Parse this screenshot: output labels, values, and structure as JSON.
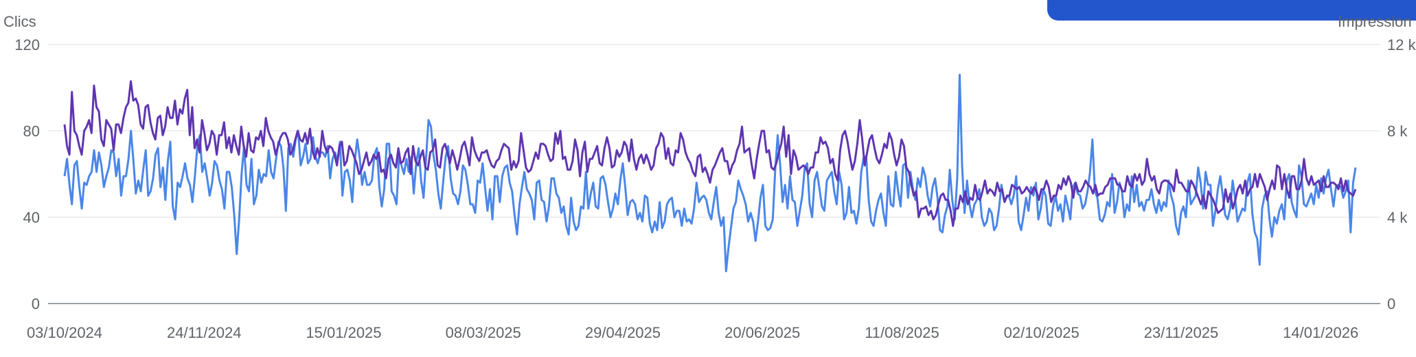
{
  "chart_data": {
    "type": "line",
    "left_axis_title": "Clics",
    "right_axis_title": "Impression",
    "left_ylim": [
      0,
      120
    ],
    "left_ticks": [
      0,
      40,
      80,
      120
    ],
    "left_tick_labels": [
      "0",
      "40",
      "80",
      "120"
    ],
    "right_ylim": [
      0,
      12000
    ],
    "right_tick_labels": [
      "0",
      "4 k",
      "8 k",
      "12 k"
    ],
    "x_tick_labels": [
      "03/10/2024",
      "24/11/2024",
      "15/01/2025",
      "08/03/2025",
      "29/04/2025",
      "20/06/2025",
      "11/08/2025",
      "02/10/2025",
      "23/11/2025",
      "14/01/2026"
    ],
    "x_range": [
      "2024-10-03",
      "2026-01-27"
    ],
    "grid": true,
    "series": [
      {
        "axis": "left",
        "color": "#5e35b1",
        "values": [
          83,
          73,
          69,
          98,
          80,
          78,
          73,
          69,
          80,
          82,
          85,
          79,
          101,
          91,
          89,
          76,
          73,
          85,
          83,
          81,
          71,
          83,
          83,
          79,
          86,
          91,
          93,
          103,
          94,
          95,
          92,
          83,
          81,
          91,
          92,
          84,
          79,
          76,
          86,
          87,
          78,
          82,
          91,
          86,
          86,
          94,
          83,
          90,
          88,
          95,
          99,
          78,
          91,
          72,
          76,
          70,
          85,
          79,
          71,
          74,
          80,
          78,
          69,
          78,
          78,
          84,
          72,
          77,
          70,
          78,
          73,
          69,
          82,
          73,
          68,
          79,
          71,
          70,
          77,
          76,
          80,
          73,
          86,
          80,
          77,
          75,
          69,
          73,
          77,
          79,
          79,
          76,
          69,
          71,
          76,
          80,
          76,
          75,
          79,
          74,
          81,
          71,
          67,
          72,
          68,
          80,
          73,
          70,
          73,
          72,
          69,
          64,
          73,
          75,
          64,
          66,
          73,
          71,
          68,
          65,
          60,
          62,
          66,
          70,
          64,
          66,
          69,
          67,
          70,
          61,
          62,
          58,
          67,
          69,
          65,
          63,
          72,
          65,
          66,
          70,
          72,
          60,
          73,
          66,
          64,
          68,
          71,
          63,
          62,
          70,
          71,
          76,
          64,
          63,
          72,
          74,
          70,
          65,
          71,
          67,
          62,
          67,
          73,
          75,
          70,
          64,
          77,
          71,
          68,
          66,
          70,
          70,
          71,
          67,
          64,
          63,
          66,
          67,
          71,
          74,
          73,
          72,
          62,
          66,
          63,
          66,
          79,
          71,
          63,
          61,
          62,
          66,
          70,
          67,
          74,
          74,
          73,
          69,
          66,
          67,
          79,
          74,
          80,
          67,
          68,
          62,
          62,
          66,
          76,
          71,
          59,
          70,
          75,
          61,
          67,
          67,
          70,
          73,
          65,
          64,
          72,
          77,
          72,
          63,
          64,
          71,
          68,
          70,
          75,
          73,
          66,
          76,
          67,
          62,
          67,
          69,
          65,
          69,
          66,
          62,
          64,
          72,
          74,
          79,
          77,
          67,
          72,
          65,
          64,
          71,
          70,
          79,
          76,
          70,
          67,
          65,
          61,
          59,
          68,
          69,
          61,
          63,
          60,
          56,
          62,
          64,
          67,
          70,
          72,
          66,
          66,
          60,
          64,
          66,
          71,
          74,
          82,
          70,
          71,
          72,
          64,
          58,
          67,
          74,
          80,
          80,
          70,
          71,
          63,
          62,
          65,
          70,
          74,
          82,
          68,
          78,
          60,
          71,
          68,
          62,
          63,
          64,
          63,
          60,
          63,
          63,
          70,
          70,
          77,
          74,
          75,
          72,
          65,
          67,
          60,
          57,
          71,
          78,
          80,
          75,
          68,
          62,
          66,
          74,
          85,
          76,
          64,
          70,
          76,
          78,
          72,
          67,
          65,
          69,
          74,
          72,
          79,
          76,
          69,
          64,
          68,
          76,
          73,
          63,
          61,
          55,
          50,
          52,
          40,
          44,
          44,
          45,
          41,
          43,
          39,
          41,
          46,
          50,
          51,
          48,
          48,
          43,
          36,
          44,
          44,
          50,
          47,
          52,
          46,
          49,
          48,
          55,
          49,
          48,
          52,
          57,
          51,
          53,
          52,
          50,
          56,
          52,
          53,
          47,
          50,
          50,
          55,
          54,
          53,
          54,
          51,
          52,
          54,
          52,
          51,
          54,
          52,
          48,
          53,
          53,
          57,
          54,
          47,
          50,
          50,
          55,
          53,
          58,
          55,
          59,
          56,
          49,
          56,
          52,
          52,
          54,
          57,
          55,
          54,
          51,
          55,
          50,
          51,
          51,
          54,
          55,
          58,
          58,
          58,
          55,
          55,
          52,
          52,
          59,
          55,
          54,
          60,
          57,
          60,
          55,
          57,
          67,
          60,
          57,
          59,
          53,
          51,
          56,
          57,
          57,
          56,
          55,
          52,
          62,
          56,
          56,
          54,
          52,
          52,
          57,
          55,
          52,
          49,
          46,
          50,
          44,
          52,
          50,
          48,
          45,
          42,
          43,
          44,
          53,
          47,
          51,
          44,
          48,
          53,
          55,
          51,
          57,
          50,
          53,
          54,
          60,
          54,
          60,
          57,
          54,
          48,
          53,
          57,
          53,
          64,
          63,
          53,
          60,
          53,
          49,
          59,
          59,
          53,
          53,
          57,
          67,
          58,
          55,
          59,
          55,
          56,
          57,
          52,
          59,
          54,
          54,
          56,
          56,
          55,
          53,
          58,
          52,
          57,
          52,
          51,
          50,
          53
        ]
      },
      {
        "axis": "right",
        "color": "#4a86e8",
        "values": [
          5900,
          6700,
          5500,
          4600,
          6400,
          6600,
          5400,
          4400,
          5600,
          5500,
          5900,
          6100,
          7100,
          6100,
          7000,
          6400,
          5400,
          5900,
          6300,
          7100,
          7000,
          5900,
          6700,
          5000,
          5900,
          5900,
          6700,
          8000,
          6600,
          5100,
          5700,
          5200,
          6200,
          7100,
          5000,
          5200,
          5800,
          6900,
          7200,
          5400,
          6300,
          4800,
          6600,
          7500,
          4500,
          3900,
          5600,
          5400,
          5900,
          6500,
          5800,
          5500,
          4700,
          5900,
          7300,
          7800,
          6100,
          6500,
          5800,
          5000,
          5600,
          6600,
          6400,
          5700,
          5300,
          4400,
          6100,
          6100,
          5400,
          4100,
          2300,
          3900,
          6000,
          7300,
          5500,
          5200,
          6700,
          4600,
          5000,
          6200,
          5600,
          6000,
          5900,
          7100,
          6100,
          5800,
          6700,
          7500,
          7300,
          6300,
          4300,
          7200,
          7400,
          6800,
          7600,
          8000,
          6400,
          6800,
          7400,
          6500,
          6700,
          7700,
          6800,
          6500,
          7000,
          7000,
          6800,
          7300,
          5800,
          6700,
          7000,
          6600,
          7500,
          5000,
          6100,
          6200,
          5700,
          4700,
          6600,
          7600,
          6800,
          5500,
          6100,
          5500,
          5500,
          5700,
          6900,
          7200,
          5400,
          4500,
          5300,
          7400,
          7400,
          5200,
          5000,
          4600,
          6800,
          6400,
          6000,
          6700,
          6100,
          6800,
          5100,
          6500,
          7200,
          5700,
          4900,
          6700,
          8500,
          8200,
          6900,
          6200,
          5100,
          4400,
          5700,
          6800,
          7300,
          5800,
          5100,
          5000,
          4600,
          5200,
          6400,
          6200,
          5500,
          4600,
          4600,
          4200,
          5700,
          5600,
          6500,
          5400,
          4300,
          5300,
          3900,
          5900,
          5900,
          4700,
          5900,
          6300,
          6400,
          5600,
          5200,
          4100,
          3200,
          4600,
          5400,
          6100,
          5300,
          5100,
          4800,
          3900,
          5600,
          5700,
          4800,
          4700,
          3800,
          4500,
          5800,
          5800,
          5100,
          4900,
          4200,
          4500,
          3600,
          3200,
          4900,
          3800,
          3400,
          3600,
          4500,
          4400,
          6100,
          4400,
          5100,
          5600,
          4500,
          4400,
          5800,
          5900,
          5500,
          4700,
          4000,
          4400,
          5100,
          4600,
          5700,
          6500,
          5400,
          4100,
          4700,
          4800,
          4600,
          3900,
          4200,
          3800,
          5000,
          4900,
          3700,
          3300,
          3800,
          3400,
          4700,
          3500,
          3800,
          4600,
          4800,
          4900,
          4000,
          4300,
          4300,
          3600,
          4400,
          3800,
          3900,
          3700,
          4400,
          5600,
          4700,
          4900,
          5000,
          4800,
          4200,
          3900,
          4700,
          5400,
          4200,
          3600,
          4000,
          1500,
          2600,
          3500,
          4400,
          4700,
          5700,
          5300,
          5000,
          4600,
          3800,
          4200,
          3800,
          2900,
          3800,
          4900,
          5500,
          3600,
          3400,
          3500,
          3900,
          6200,
          7800,
          6400,
          4700,
          5500,
          4400,
          5900,
          4800,
          4700,
          3600,
          4300,
          5000,
          6300,
          6500,
          4600,
          4000,
          5700,
          6100,
          5300,
          4500,
          4300,
          5700,
          5900,
          6100,
          5200,
          4600,
          6100,
          5500,
          3900,
          4200,
          5400,
          4200,
          4300,
          3700,
          4400,
          6100,
          6800,
          6800,
          4800,
          3800,
          3600,
          4300,
          4800,
          5100,
          4200,
          3600,
          5900,
          4600,
          4500,
          6100,
          5200,
          4500,
          6400,
          6500,
          4900,
          6100,
          5300,
          4800,
          5800,
          5400,
          6300,
          5900,
          5000,
          4500,
          5400,
          5800,
          4900,
          3400,
          3300,
          4100,
          4500,
          6200,
          4800,
          3900,
          5800,
          10600,
          6400,
          4200,
          5700,
          4600,
          4000,
          4600,
          4800,
          5300,
          4000,
          3600,
          3800,
          4400,
          4200,
          3400,
          3600,
          4400,
          5500,
          4800,
          4900,
          5000,
          4600,
          5000,
          5900,
          3800,
          3400,
          4100,
          4900,
          4300,
          5400,
          5000,
          5600,
          3900,
          4400,
          5300,
          5000,
          3700,
          3600,
          4500,
          5000,
          4300,
          4600,
          3800,
          5000,
          4500,
          3900,
          5400,
          5600,
          5100,
          5000,
          4400,
          4600,
          5200,
          6100,
          7600,
          5200,
          4900,
          3900,
          3800,
          4100,
          4700,
          4500,
          6000,
          4200,
          4700,
          5600,
          5200,
          4000,
          4600,
          4300,
          5900,
          4700,
          5500,
          4500,
          4700,
          4300,
          4800,
          4800,
          5300,
          4600,
          4200,
          4800,
          4300,
          4700,
          4500,
          5700,
          5000,
          4600,
          3600,
          3200,
          4200,
          4500,
          4000,
          5700,
          4600,
          4800,
          5000,
          6300,
          5600,
          4400,
          6100,
          5500,
          5500,
          3600,
          4300,
          5300,
          5900,
          5000,
          4100,
          3900,
          4400,
          5700,
          4900,
          3800,
          4100,
          4400,
          4300,
          5600,
          6000,
          4200,
          3300,
          3000,
          1800,
          4400,
          5000,
          5200,
          3900,
          3100,
          4000,
          3700,
          4300,
          4600,
          3900,
          5700,
          6000,
          4700,
          4300,
          4000,
          6400,
          5900,
          4600,
          4500,
          4800,
          5100,
          4600,
          5500,
          4900,
          5800,
          5100,
          5800,
          6200,
          5300,
          4500,
          5400,
          5500,
          5400,
          4900,
          5200,
          5700,
          3300,
          5600,
          6300
        ]
      }
    ]
  }
}
